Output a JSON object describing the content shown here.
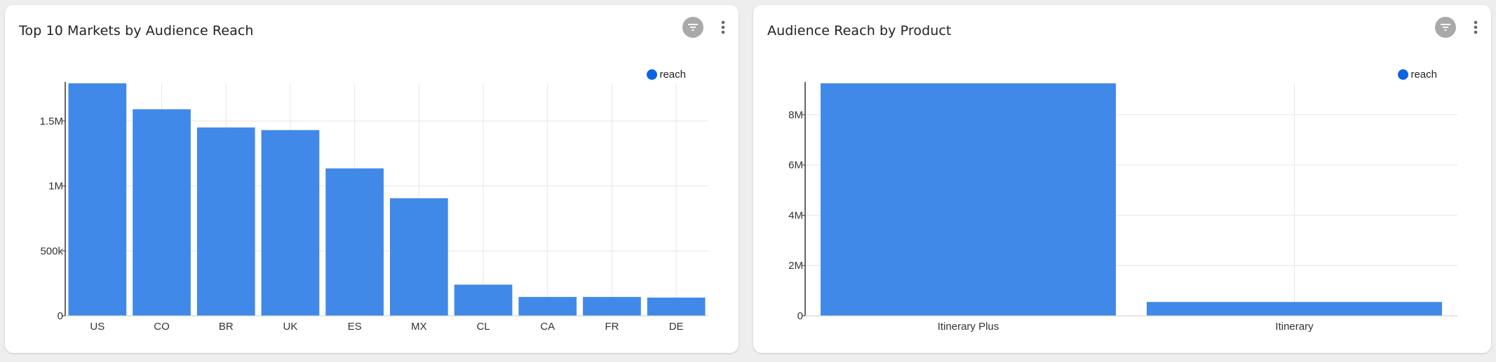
{
  "colors": {
    "bar": "#4189e8",
    "legend_dot": "#0f63e0",
    "grid": "#e6e6e6",
    "axis": "#333333",
    "card": "#ffffff",
    "background": "#eeeeef"
  },
  "icons": {
    "filter": "filter-icon",
    "more": "more-vert-icon"
  },
  "cards": [
    {
      "title": "Top 10 Markets by Audience Reach",
      "legend_label": "reach"
    },
    {
      "title": "Audience Reach by Product",
      "legend_label": "reach"
    }
  ],
  "chart_data": [
    {
      "type": "bar",
      "title": "Top 10 Markets by Audience Reach",
      "categories": [
        "US",
        "CO",
        "BR",
        "UK",
        "ES",
        "MX",
        "CL",
        "CA",
        "FR",
        "DE"
      ],
      "series": [
        {
          "name": "reach",
          "values": [
            1790000,
            1590000,
            1450000,
            1430000,
            1135000,
            905000,
            240000,
            145000,
            145000,
            140000
          ]
        }
      ],
      "ylim": [
        0,
        1790000
      ],
      "yticks": [
        0,
        500000,
        1000000,
        1500000
      ],
      "ytick_labels": [
        "0",
        "500k",
        "1M",
        "1.5M"
      ],
      "grid": true,
      "legend_position": "top-right"
    },
    {
      "type": "bar",
      "title": "Audience Reach by Product",
      "categories": [
        "Itinerary Plus",
        "Itinerary"
      ],
      "series": [
        {
          "name": "reach",
          "values": [
            9250000,
            550000
          ]
        }
      ],
      "ylim": [
        0,
        9250000
      ],
      "yticks": [
        0,
        2000000,
        4000000,
        6000000,
        8000000
      ],
      "ytick_labels": [
        "0",
        "2M",
        "4M",
        "6M",
        "8M"
      ],
      "grid": true,
      "legend_position": "top-right"
    }
  ]
}
